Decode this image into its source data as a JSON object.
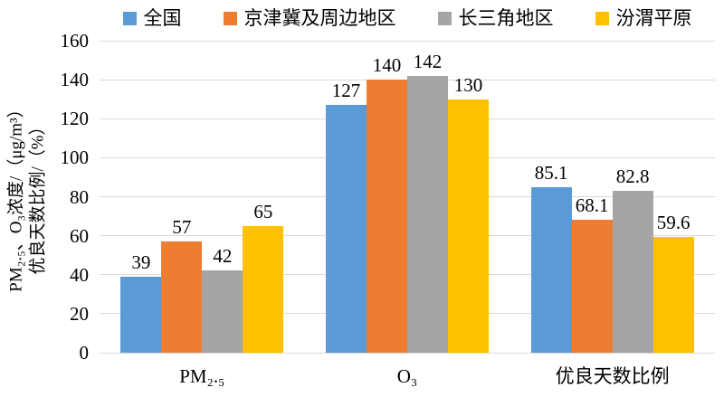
{
  "chart_data": {
    "type": "bar",
    "title": "",
    "categories": [
      "PM₂.₅",
      "O₃",
      "优良天数比例"
    ],
    "series": [
      {
        "name": "全国",
        "color": "#5B9BD5",
        "values": [
          39,
          127,
          85.1
        ]
      },
      {
        "name": "京津冀及周边地区",
        "color": "#ED7D31",
        "values": [
          57,
          140,
          68.1
        ]
      },
      {
        "name": "长三角地区",
        "color": "#A5A5A5",
        "values": [
          42,
          142,
          82.8
        ]
      },
      {
        "name": "汾渭平原",
        "color": "#FFC000",
        "values": [
          65,
          130,
          59.6
        ]
      }
    ],
    "ylabel_line1": "PM₂.₅、O₃浓度/（μg/m³）",
    "ylabel_line2": "优良天数比例/（%）",
    "xlabel": "",
    "ylim": [
      0,
      160
    ],
    "yticks": [
      0,
      20,
      40,
      60,
      80,
      100,
      120,
      140,
      160
    ],
    "grid": true,
    "legend_position": "top",
    "colors": {
      "gridline": "#D9D9D9",
      "axis_text": "#000000",
      "background": "#FFFFFF"
    }
  }
}
